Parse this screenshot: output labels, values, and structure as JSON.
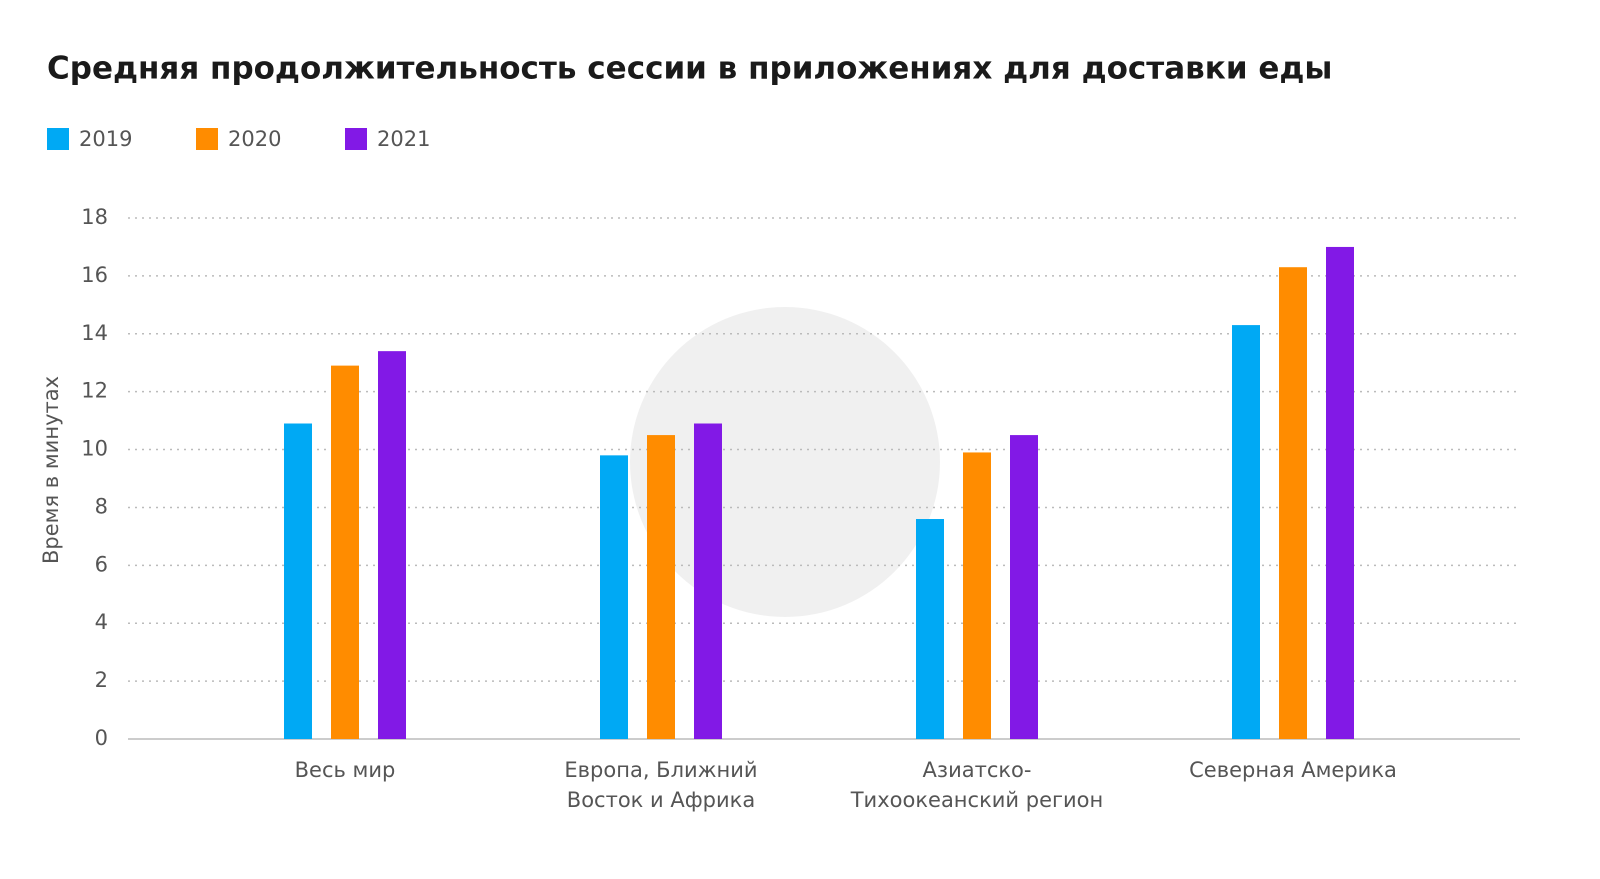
{
  "chart_data": {
    "type": "bar",
    "title": "Средняя продолжительность сессии в приложениях для доставки еды",
    "y_label": "Время в минутах",
    "categories": [
      "Весь мир",
      "Европа, Ближний Восток и Африка",
      "Азиатско-Тихоокеанский регион",
      "Северная Америка"
    ],
    "series": [
      {
        "name": "2019",
        "color": "#00a9f4",
        "values": [
          10.9,
          9.8,
          7.6,
          14.3
        ]
      },
      {
        "name": "2020",
        "color": "#ff8c00",
        "values": [
          12.9,
          10.5,
          9.9,
          16.3
        ]
      },
      {
        "name": "2021",
        "color": "#8219e6",
        "values": [
          13.4,
          10.9,
          10.5,
          17.0
        ]
      }
    ],
    "ylim": [
      0,
      18
    ],
    "yticks": [
      0,
      2,
      4,
      6,
      8,
      10,
      12,
      14,
      16,
      18
    ],
    "grid": true
  }
}
